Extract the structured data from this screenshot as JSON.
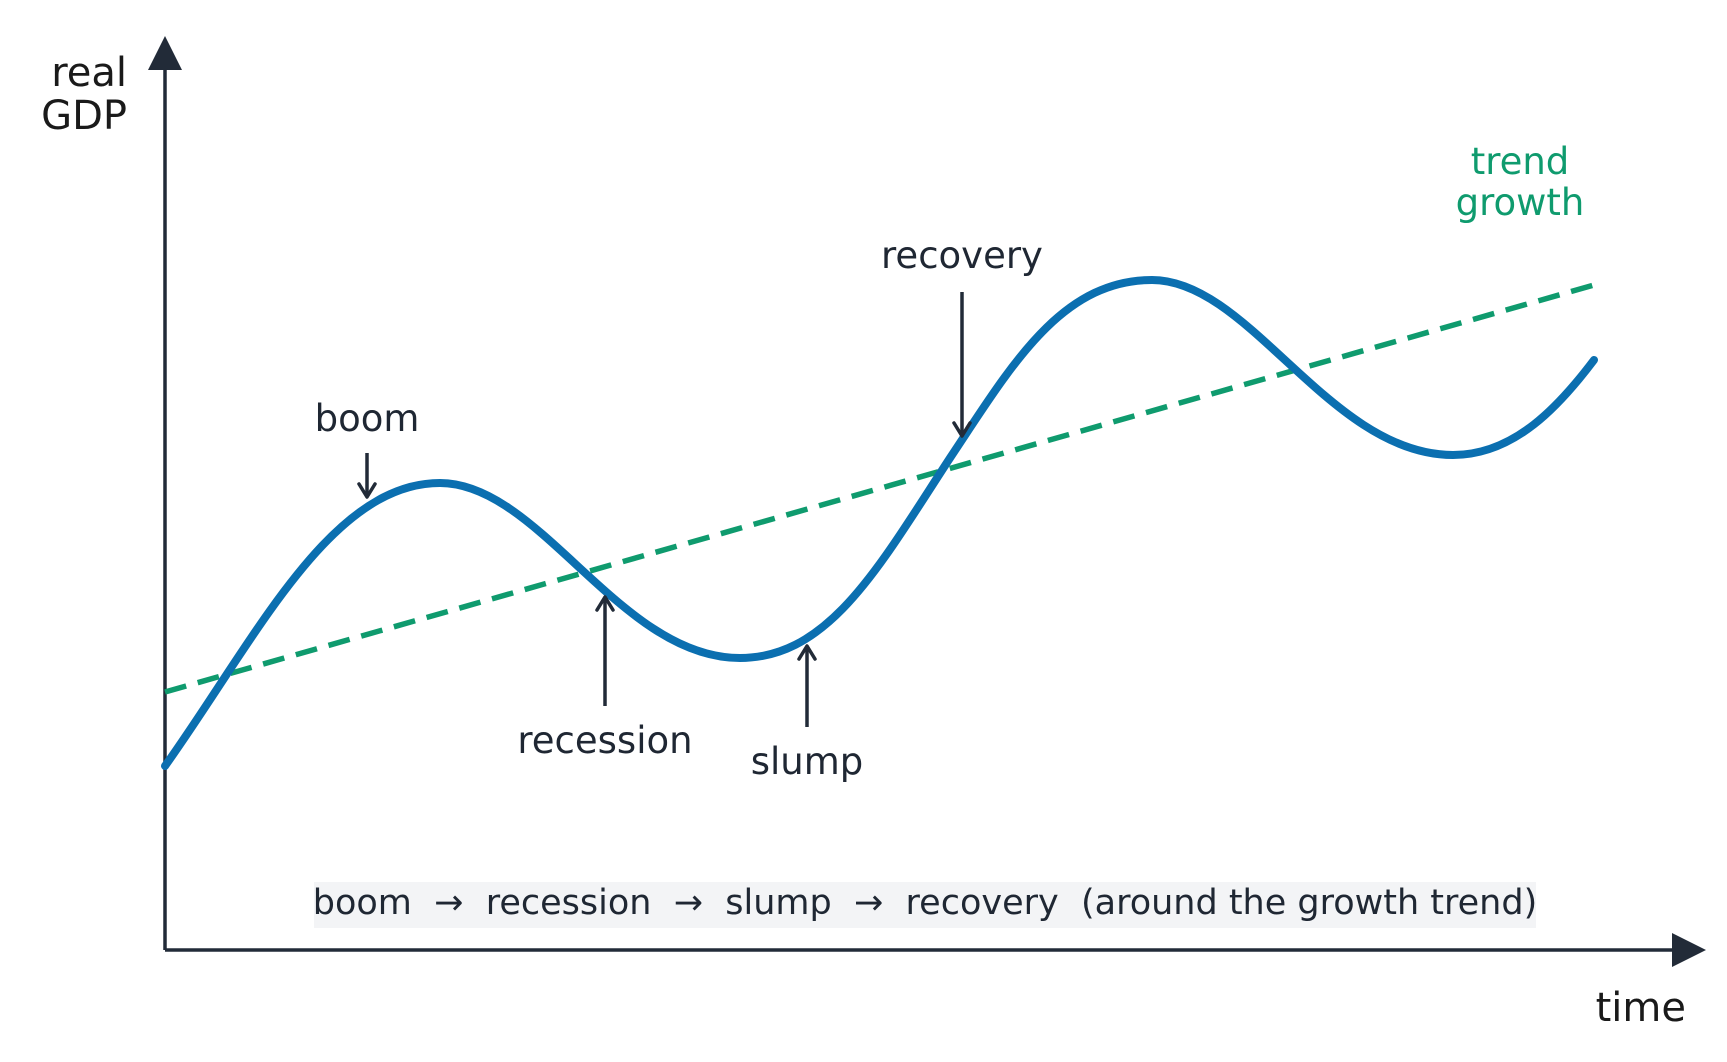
{
  "axes": {
    "y_label_line1": "real",
    "y_label_line2": "GDP",
    "x_label": "time"
  },
  "trend": {
    "label_line1": "trend",
    "label_line2": "growth",
    "color": "#0f9b6e"
  },
  "cycle": {
    "color": "#0b6fb0"
  },
  "phases": {
    "boom": "boom",
    "recession": "recession",
    "slump": "slump",
    "recovery": "recovery"
  },
  "caption": "boom  →  recession  →  slump  →  recovery  (around the growth trend)",
  "colors": {
    "axis": "#222b38",
    "text": "#1f2733",
    "caption_bg": "#f3f4f6"
  }
}
